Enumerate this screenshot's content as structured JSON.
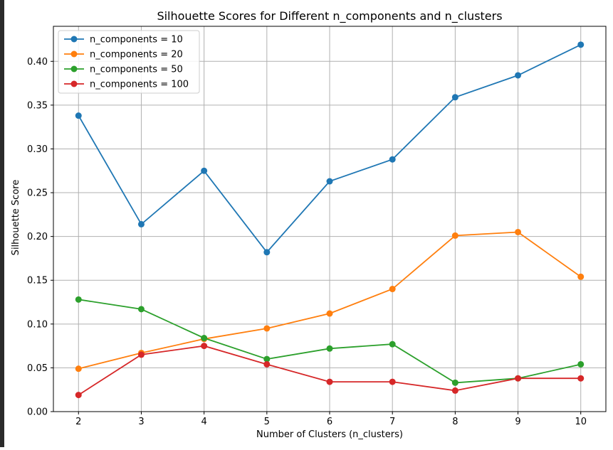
{
  "chart_data": {
    "type": "line",
    "title": "Silhouette Scores for Different n_components and n_clusters",
    "xlabel": "Number of Clusters (n_clusters)",
    "ylabel": "Silhouette Score",
    "x": [
      2,
      3,
      4,
      5,
      6,
      7,
      8,
      9,
      10
    ],
    "xlim": [
      1.6,
      10.4
    ],
    "ylim": [
      0.0,
      0.44
    ],
    "xticks": [
      "2",
      "3",
      "4",
      "5",
      "6",
      "7",
      "8",
      "9",
      "10"
    ],
    "yticks": [
      0.0,
      0.05,
      0.1,
      0.15,
      0.2,
      0.25,
      0.3,
      0.35,
      0.4
    ],
    "ytick_labels": [
      "0.00",
      "0.05",
      "0.10",
      "0.15",
      "0.20",
      "0.25",
      "0.30",
      "0.35",
      "0.40"
    ],
    "grid": true,
    "legend_position": "top-left",
    "series": [
      {
        "name": "n_components = 10",
        "color": "#1f77b4",
        "values": [
          0.338,
          0.214,
          0.275,
          0.182,
          0.263,
          0.288,
          0.359,
          0.384,
          0.419
        ]
      },
      {
        "name": "n_components = 20",
        "color": "#ff7f0e",
        "values": [
          0.049,
          0.067,
          0.083,
          0.095,
          0.112,
          0.14,
          0.201,
          0.205,
          0.154
        ]
      },
      {
        "name": "n_components = 50",
        "color": "#2ca02c",
        "values": [
          0.128,
          0.117,
          0.084,
          0.06,
          0.072,
          0.077,
          0.033,
          0.038,
          0.054
        ]
      },
      {
        "name": "n_components = 100",
        "color": "#d62728",
        "values": [
          0.019,
          0.065,
          0.075,
          0.054,
          0.034,
          0.034,
          0.024,
          0.038,
          0.038
        ]
      }
    ]
  }
}
